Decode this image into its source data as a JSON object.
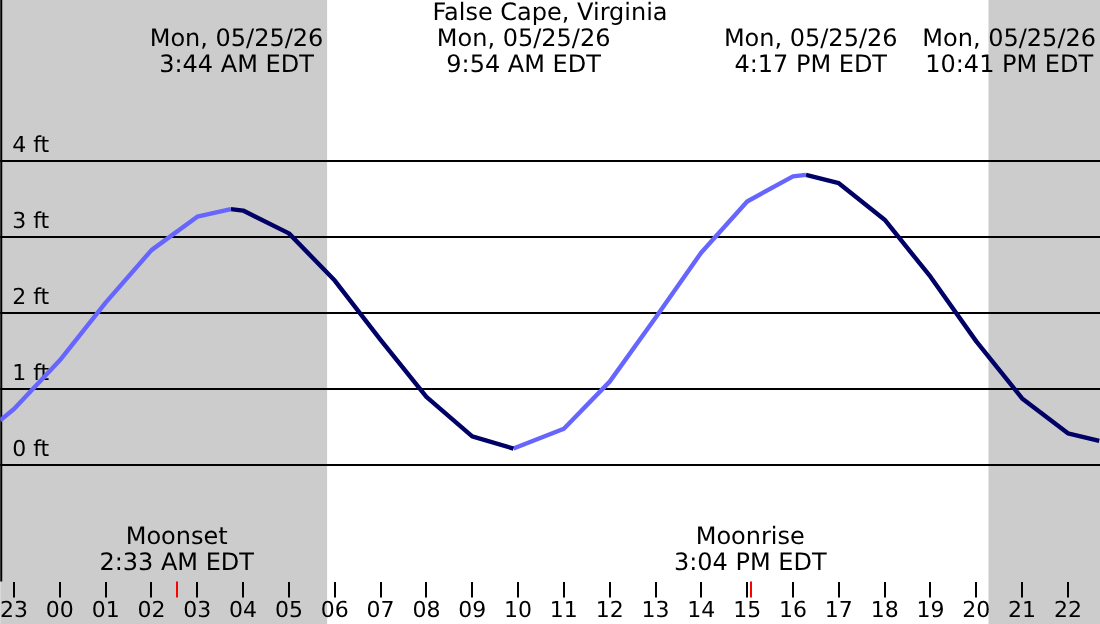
{
  "chart_data": {
    "type": "line",
    "title": "False Cape, Virginia",
    "series": [
      {
        "color": "#6666ff",
        "x": [
          "--05-24T22:42",
          "--05-24T23:00",
          "--05-25T00:00",
          "--05-25T01:00",
          "--05-25T02:00",
          "--05-25T03:00",
          "--05-25T03:44"
        ],
        "values": [
          0.57,
          0.72,
          1.36,
          2.12,
          2.81,
          3.25,
          3.35
        ]
      },
      {
        "color": "#000066",
        "x": [
          "--05-25T03:44",
          "--05-25T04:00",
          "--05-25T05:00",
          "--05-25T06:00",
          "--05-25T07:00",
          "--05-25T08:00",
          "--05-25T09:00",
          "--05-25T09:54"
        ],
        "values": [
          3.35,
          3.33,
          3.03,
          2.41,
          1.63,
          0.88,
          0.36,
          0.2
        ]
      },
      {
        "color": "#6666ff",
        "x": [
          "--05-25T09:54",
          "--05-25T11:00",
          "--05-25T12:00",
          "--05-25T13:00",
          "--05-25T14:00",
          "--05-25T15:00",
          "--05-25T16:00",
          "--05-25T16:17"
        ],
        "values": [
          0.2,
          0.46,
          1.08,
          1.92,
          2.78,
          3.45,
          3.78,
          3.8
        ]
      },
      {
        "color": "#000066",
        "x": [
          "--05-25T16:17",
          "--05-25T17:00",
          "--05-25T18:00",
          "--05-25T19:00",
          "--05-25T20:00",
          "--05-25T21:00",
          "--05-25T22:00",
          "--05-25T22:41"
        ],
        "values": [
          3.8,
          3.69,
          3.21,
          2.46,
          1.61,
          0.86,
          0.4,
          0.3
        ]
      }
    ],
    "xlim": [
      "--05-24T22:42",
      "--05-25T22:42"
    ],
    "xticks": [
      {
        "value": "--05-24T23:00",
        "label": "23"
      },
      {
        "value": "--05-25T00:00",
        "label": "00"
      },
      {
        "value": "--05-25T01:00",
        "label": "01"
      },
      {
        "value": "--05-25T02:00",
        "label": "02"
      },
      {
        "value": "--05-25T03:00",
        "label": "03"
      },
      {
        "value": "--05-25T04:00",
        "label": "04"
      },
      {
        "value": "--05-25T05:00",
        "label": "05"
      },
      {
        "value": "--05-25T06:00",
        "label": "06"
      },
      {
        "value": "--05-25T07:00",
        "label": "07"
      },
      {
        "value": "--05-25T08:00",
        "label": "08"
      },
      {
        "value": "--05-25T09:00",
        "label": "09"
      },
      {
        "value": "--05-25T10:00",
        "label": "10"
      },
      {
        "value": "--05-25T11:00",
        "label": "11"
      },
      {
        "value": "--05-25T12:00",
        "label": "12"
      },
      {
        "value": "--05-25T13:00",
        "label": "13"
      },
      {
        "value": "--05-25T14:00",
        "label": "14"
      },
      {
        "value": "--05-25T15:00",
        "label": "15"
      },
      {
        "value": "--05-25T16:00",
        "label": "16"
      },
      {
        "value": "--05-25T17:00",
        "label": "17"
      },
      {
        "value": "--05-25T18:00",
        "label": "18"
      },
      {
        "value": "--05-25T19:00",
        "label": "19"
      },
      {
        "value": "--05-25T20:00",
        "label": "20"
      },
      {
        "value": "--05-25T21:00",
        "label": "21"
      },
      {
        "value": "--05-25T22:00",
        "label": "22"
      }
    ],
    "ylim": [
      -1.55,
      6.1
    ],
    "yticks": [
      {
        "value": 0,
        "label": "0 ft"
      },
      {
        "value": 1,
        "label": "1 ft"
      },
      {
        "value": 2,
        "label": "2 ft"
      },
      {
        "value": 3,
        "label": "3 ft"
      },
      {
        "value": 4,
        "label": "4 ft"
      }
    ],
    "grid": "y",
    "legend": false,
    "marker": "none",
    "line_style": "solid",
    "bands": [
      {
        "axis": "x",
        "from": "--05-24T22:42",
        "to": "--05-25T05:50",
        "color": "#cccccc"
      },
      {
        "axis": "x",
        "from": "--05-25T20:16",
        "to": "--05-25T22:42",
        "color": "#cccccc"
      }
    ],
    "ref_lines": [
      {
        "axis": "x",
        "value": "--05-25T02:33",
        "label": "Moonset\n2:33 AM EDT",
        "color": "#ff0000"
      },
      {
        "axis": "x",
        "value": "--05-25T15:04",
        "label": "Moonrise\n3:04 PM EDT",
        "color": "#ff0000"
      }
    ],
    "annotations": [
      "Mon, 05/25/26\n3:44 AM EDT",
      "Mon, 05/25/26\n9:54 AM EDT",
      "Mon, 05/25/26\n4:17 PM EDT",
      "Mon, 05/25/26\n10:41 PM EDT"
    ]
  }
}
